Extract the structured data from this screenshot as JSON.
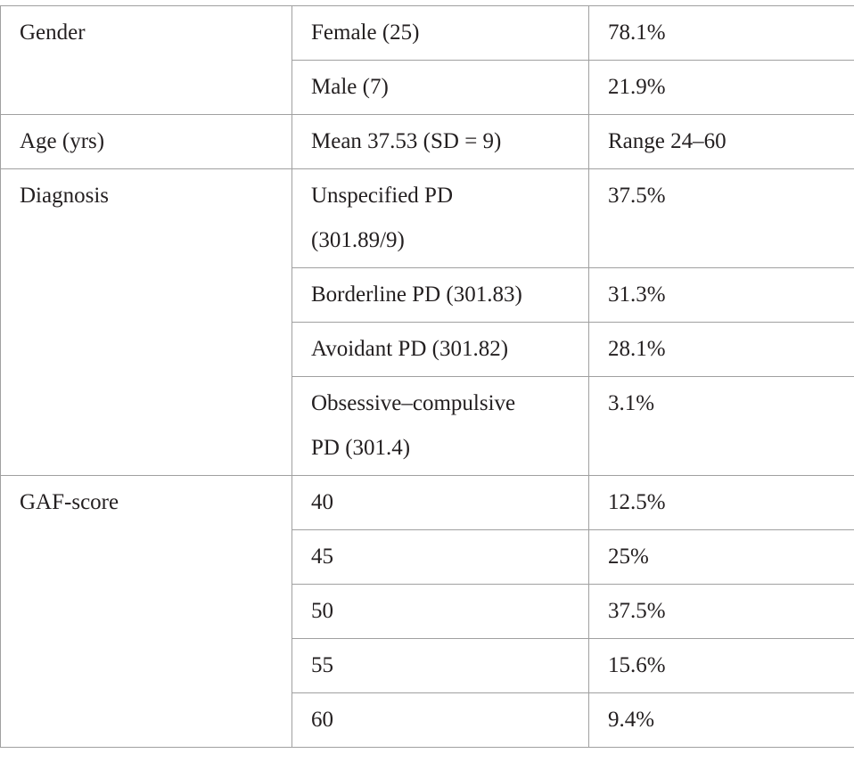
{
  "table": {
    "groups": [
      {
        "label": "Gender",
        "rows": [
          [
            "Female (25)",
            "78.1%"
          ],
          [
            "Male (7)",
            "21.9%"
          ]
        ]
      },
      {
        "label": "Age (yrs)",
        "rows": [
          [
            "Mean 37.53 (SD = 9)",
            "Range 24–60"
          ]
        ]
      },
      {
        "label": "Diagnosis",
        "rows": [
          [
            "Unspecified PD (301.89/9)",
            "37.5%"
          ],
          [
            "Borderline PD (301.83)",
            "31.3%"
          ],
          [
            "Avoidant PD (301.82)",
            "28.1%"
          ],
          [
            "Obsessive–compulsive PD (301.4)",
            "3.1%"
          ]
        ]
      },
      {
        "label": "GAF-score",
        "rows": [
          [
            "40",
            "12.5%"
          ],
          [
            "45",
            "25%"
          ],
          [
            "50",
            "37.5%"
          ],
          [
            "55",
            "15.6%"
          ],
          [
            "60",
            "9.4%"
          ]
        ]
      }
    ]
  }
}
